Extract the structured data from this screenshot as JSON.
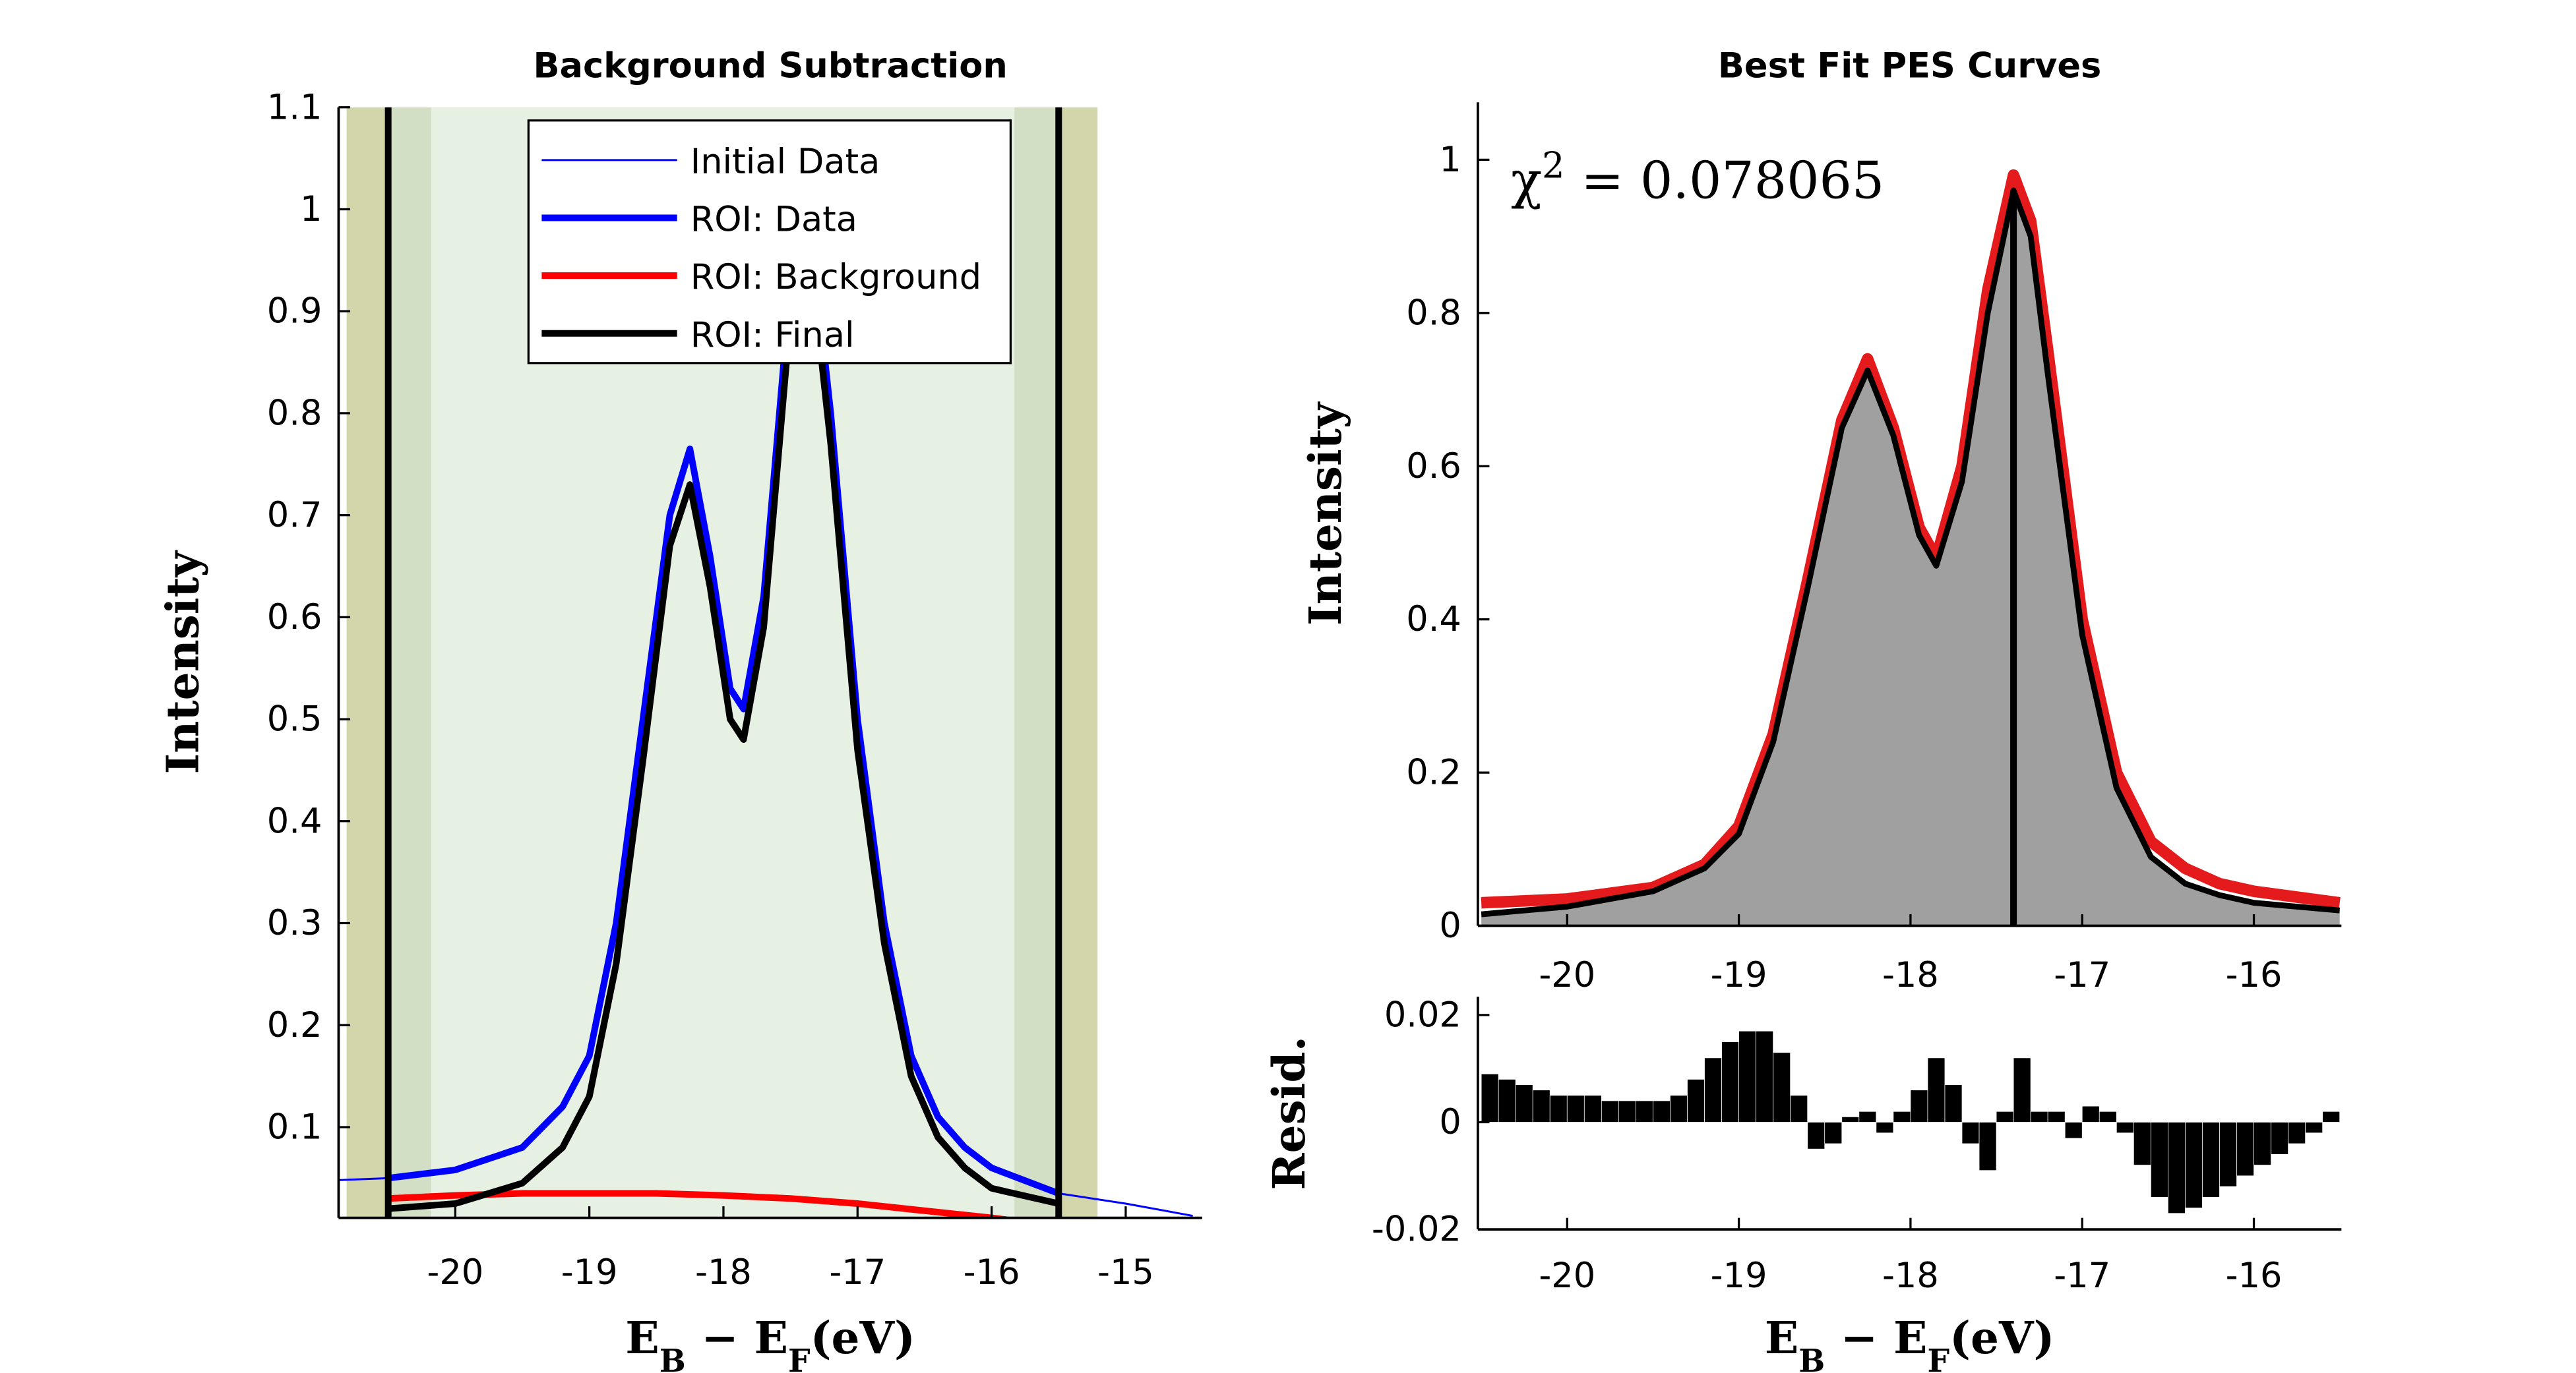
{
  "chart_data": [
    {
      "type": "line",
      "title": "Background Subtraction",
      "ylabel": "Intensity",
      "xlabel": [
        "E",
        "B",
        " − E",
        "F",
        "(eV)"
      ],
      "xlim": [
        -20.87,
        -14.43
      ],
      "ylim": [
        0.011,
        1.1
      ],
      "xticks": [
        -20,
        -19,
        -18,
        -17,
        -16,
        -15
      ],
      "yticks": [
        0.1,
        0.2,
        0.3,
        0.4,
        0.5,
        0.6,
        0.7,
        0.8,
        0.9,
        1,
        1.1
      ],
      "legend": "top",
      "bands": [
        {
          "x": [
            -20.81,
            -15.21
          ],
          "color": "#d3d6ab"
        },
        {
          "x": [
            -20.5,
            -15.5
          ],
          "color": "#d3dfc5"
        },
        {
          "x": [
            -20.18,
            -15.83
          ],
          "color": "#e6f1e3"
        }
      ],
      "vlines": [
        {
          "x": -20.5
        },
        {
          "x": -15.5
        }
      ],
      "series": [
        {
          "name": "Initial Data",
          "color": "#0000ff",
          "line_width": 1.2,
          "x": [
            -20.87,
            -20.5,
            -20,
            -19.5,
            -19.2,
            -19,
            -18.8,
            -18.6,
            -18.4,
            -18.25,
            -18.1,
            -17.95,
            -17.85,
            -17.7,
            -17.55,
            -17.45,
            -17.35,
            -17.2,
            -17,
            -16.8,
            -16.6,
            -16.4,
            -16.2,
            -16,
            -15.5,
            -15,
            -14.5
          ],
          "values": [
            0.048,
            0.05,
            0.058,
            0.08,
            0.12,
            0.17,
            0.3,
            0.5,
            0.7,
            0.765,
            0.66,
            0.53,
            0.51,
            0.62,
            0.85,
            1.0,
            0.98,
            0.8,
            0.5,
            0.3,
            0.17,
            0.11,
            0.08,
            0.06,
            0.035,
            0.025,
            0.013
          ]
        },
        {
          "name": "ROI: Data",
          "color": "#0000ff",
          "line_width": 4,
          "x": [
            -20.5,
            -20,
            -19.5,
            -19.2,
            -19,
            -18.8,
            -18.6,
            -18.4,
            -18.25,
            -18.1,
            -17.95,
            -17.85,
            -17.7,
            -17.55,
            -17.45,
            -17.35,
            -17.2,
            -17,
            -16.8,
            -16.6,
            -16.4,
            -16.2,
            -16,
            -15.5
          ],
          "values": [
            0.05,
            0.058,
            0.08,
            0.12,
            0.17,
            0.3,
            0.5,
            0.7,
            0.765,
            0.66,
            0.53,
            0.51,
            0.62,
            0.85,
            1.0,
            0.98,
            0.8,
            0.5,
            0.3,
            0.17,
            0.11,
            0.08,
            0.06,
            0.035
          ]
        },
        {
          "name": "ROI: Background",
          "color": "#ff0000",
          "line_width": 4,
          "x": [
            -20.5,
            -20,
            -19.5,
            -19,
            -18.5,
            -18,
            -17.5,
            -17,
            -16.5,
            -16,
            -15.5
          ],
          "values": [
            0.03,
            0.033,
            0.035,
            0.035,
            0.035,
            0.033,
            0.03,
            0.025,
            0.018,
            0.011,
            0.003
          ]
        },
        {
          "name": "ROI: Final",
          "color": "#000000",
          "line_width": 4,
          "x": [
            -20.5,
            -20,
            -19.5,
            -19.2,
            -19,
            -18.8,
            -18.6,
            -18.4,
            -18.25,
            -18.1,
            -17.95,
            -17.85,
            -17.7,
            -17.55,
            -17.45,
            -17.35,
            -17.2,
            -17,
            -16.8,
            -16.6,
            -16.4,
            -16.2,
            -16,
            -15.5
          ],
          "values": [
            0.02,
            0.025,
            0.045,
            0.08,
            0.13,
            0.26,
            0.46,
            0.67,
            0.73,
            0.63,
            0.5,
            0.48,
            0.59,
            0.82,
            0.97,
            0.95,
            0.77,
            0.47,
            0.28,
            0.15,
            0.09,
            0.06,
            0.04,
            0.025
          ]
        }
      ]
    },
    {
      "type": "line",
      "title": "Best Fit PES Curves",
      "ylabel": "Intensity",
      "annotation": [
        "χ",
        "2",
        " = 0.078065"
      ],
      "xlim": [
        -20.52,
        -15.49
      ],
      "ylim": [
        0,
        1.075
      ],
      "xticks": [
        -20,
        -19,
        -18,
        -17,
        -16
      ],
      "yticks": [
        0,
        0.2,
        0.4,
        0.6,
        0.8,
        1
      ],
      "vlines": [
        {
          "x": -17.4,
          "y": [
            0,
            0.96
          ]
        }
      ],
      "series": [
        {
          "color": "#e41a1c",
          "line_width": 7,
          "x": [
            -20.5,
            -20,
            -19.5,
            -19.2,
            -19,
            -18.8,
            -18.6,
            -18.4,
            -18.25,
            -18.1,
            -17.95,
            -17.85,
            -17.7,
            -17.55,
            -17.4,
            -17.3,
            -17.2,
            -17,
            -16.8,
            -16.6,
            -16.4,
            -16.2,
            -16,
            -15.5
          ],
          "values": [
            0.03,
            0.035,
            0.05,
            0.08,
            0.13,
            0.25,
            0.45,
            0.66,
            0.74,
            0.65,
            0.52,
            0.48,
            0.6,
            0.83,
            0.98,
            0.92,
            0.75,
            0.4,
            0.2,
            0.11,
            0.075,
            0.055,
            0.045,
            0.03
          ]
        },
        {
          "color": "#000000",
          "line_width": 3.5,
          "fill_color": "#a0a0a0",
          "x": [
            -20.5,
            -20,
            -19.5,
            -19.2,
            -19,
            -18.8,
            -18.6,
            -18.4,
            -18.25,
            -18.1,
            -17.95,
            -17.85,
            -17.7,
            -17.55,
            -17.4,
            -17.3,
            -17.2,
            -17,
            -16.8,
            -16.6,
            -16.4,
            -16.2,
            -16,
            -15.5
          ],
          "values": [
            0.015,
            0.025,
            0.045,
            0.075,
            0.12,
            0.24,
            0.44,
            0.65,
            0.725,
            0.64,
            0.51,
            0.47,
            0.58,
            0.8,
            0.96,
            0.9,
            0.72,
            0.38,
            0.18,
            0.09,
            0.055,
            0.04,
            0.03,
            0.02
          ]
        }
      ]
    },
    {
      "type": "histogram",
      "ylabel": "Resid.",
      "xlabel": [
        "E",
        "B",
        " − E",
        "F",
        "(eV)"
      ],
      "xlim": [
        -20.52,
        -15.49
      ],
      "ylim": [
        -0.02,
        0.0234
      ],
      "xticks": [
        -20,
        -19,
        -18,
        -17,
        -16
      ],
      "yticks": [
        -0.02,
        0,
        0.02
      ],
      "color": "#000000",
      "bins": [
        -20.5,
        -20.4,
        -20.3,
        -20.2,
        -20.1,
        -20,
        -19.9,
        -19.8,
        -19.7,
        -19.6,
        -19.5,
        -19.4,
        -19.3,
        -19.2,
        -19.1,
        -19,
        -18.9,
        -18.8,
        -18.7,
        -18.6,
        -18.5,
        -18.4,
        -18.3,
        -18.2,
        -18.1,
        -18,
        -17.9,
        -17.8,
        -17.7,
        -17.6,
        -17.5,
        -17.4,
        -17.3,
        -17.2,
        -17.1,
        -17,
        -16.9,
        -16.8,
        -16.7,
        -16.6,
        -16.5,
        -16.4,
        -16.3,
        -16.2,
        -16.1,
        -16,
        -15.9,
        -15.8,
        -15.7,
        -15.6,
        -15.5
      ],
      "values": [
        0.009,
        0.008,
        0.007,
        0.006,
        0.005,
        0.005,
        0.005,
        0.004,
        0.004,
        0.004,
        0.004,
        0.005,
        0.008,
        0.012,
        0.015,
        0.017,
        0.017,
        0.013,
        0.005,
        -0.005,
        -0.004,
        0.001,
        0.002,
        -0.002,
        0.002,
        0.006,
        0.012,
        0.007,
        -0.004,
        -0.009,
        0.002,
        0.012,
        0.002,
        0.002,
        -0.003,
        0.003,
        0.002,
        -0.002,
        -0.008,
        -0.014,
        -0.017,
        -0.016,
        -0.014,
        -0.012,
        -0.01,
        -0.008,
        -0.006,
        -0.004,
        -0.002,
        0.002
      ]
    }
  ]
}
